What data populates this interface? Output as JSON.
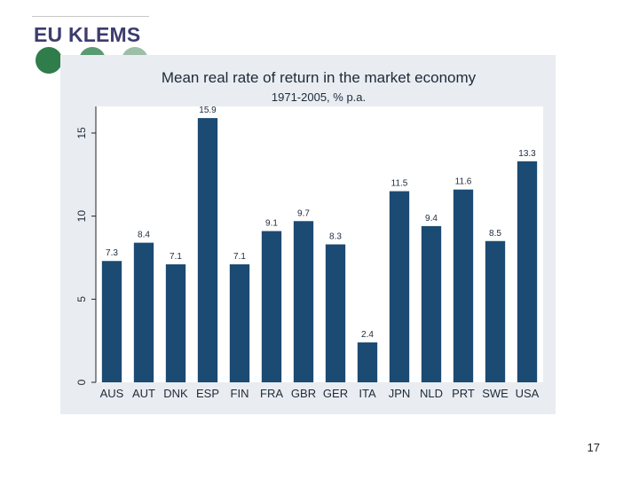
{
  "brand": {
    "name": "EU KLEMS",
    "color": "#3c3c6e"
  },
  "slide_number": "17",
  "colors": {
    "bar": "#1b4a73",
    "panel": "#e9edf1",
    "plot": "#ffffff"
  },
  "chart_data": {
    "type": "bar",
    "title": "Mean real rate of return in the market economy",
    "subtitle": "1971-2005, % p.a.",
    "xlabel": "",
    "ylabel": "",
    "categories": [
      "AUS",
      "AUT",
      "DNK",
      "ESP",
      "FIN",
      "FRA",
      "GBR",
      "GER",
      "ITA",
      "JPN",
      "NLD",
      "PRT",
      "SWE",
      "USA"
    ],
    "values": [
      7.3,
      8.4,
      7.1,
      15.9,
      7.1,
      9.1,
      9.7,
      8.3,
      2.4,
      11.5,
      9.4,
      11.6,
      8.5,
      13.3
    ],
    "data_labels": [
      "7.3",
      "8.4",
      "7.1",
      "15.9",
      "7.1",
      "9.1",
      "9.7",
      "8.3",
      "2.4",
      "11.5",
      "9.4",
      "11.6",
      "8.5",
      "13.3"
    ],
    "ylim": [
      0,
      16.6
    ],
    "yticks": [
      0,
      5,
      10,
      15
    ],
    "ytick_labels": [
      "0",
      "5",
      "10",
      "15"
    ],
    "grid": false,
    "legend": "none"
  }
}
